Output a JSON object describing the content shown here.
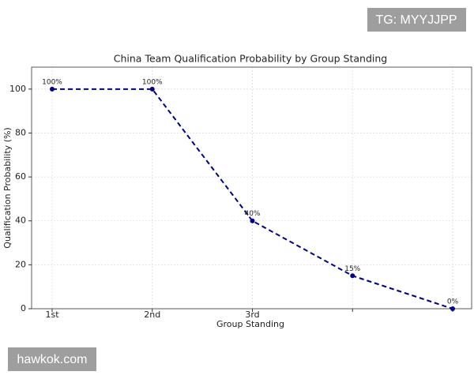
{
  "chart_data": {
    "type": "line",
    "title": "China Team Qualification Probability by Group Standing",
    "xlabel": "Group Standing",
    "ylabel": "Qualification Probability (%)",
    "categories": [
      "1st",
      "2nd",
      "3rd",
      null,
      null
    ],
    "series": [
      {
        "name": "Qualification Probability",
        "color": "#00008b",
        "values": [
          100,
          100,
          40,
          15,
          0
        ],
        "value_labels": [
          "100%",
          "100%",
          "40%",
          "15%",
          "0%"
        ]
      }
    ],
    "ylim": [
      0,
      110
    ],
    "yticks": [
      0,
      20,
      40,
      60,
      80,
      100
    ],
    "grid": true
  },
  "watermarks": [
    "TG: MYYJJPP",
    "hawkok.com"
  ]
}
